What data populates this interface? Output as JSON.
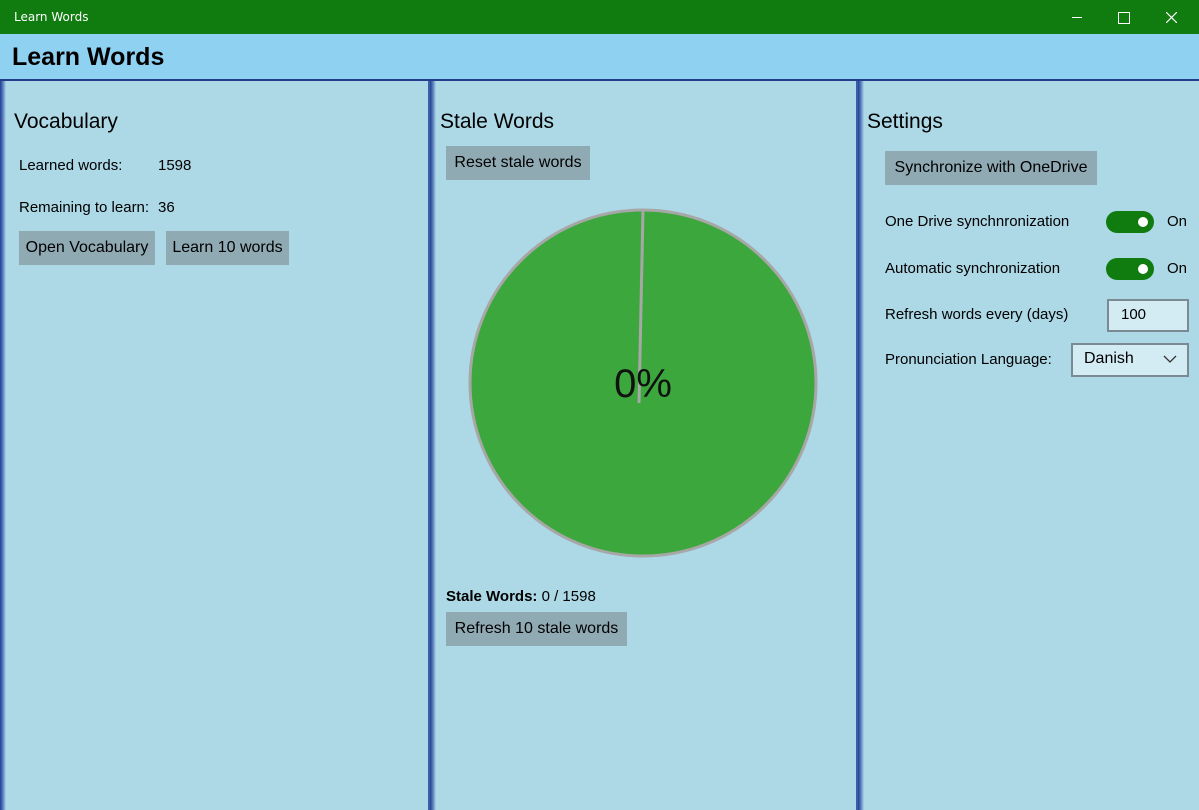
{
  "window": {
    "title": "Learn Words"
  },
  "app": {
    "title": "Learn Words"
  },
  "vocabulary": {
    "title": "Vocabulary",
    "learned_label": "Learned words:",
    "learned_value": "1598",
    "remaining_label": "Remaining to learn:",
    "remaining_value": "36",
    "open_button": "Open Vocabulary",
    "learn_button": "Learn 10 words"
  },
  "stale": {
    "title": "Stale Words",
    "reset_button": "Reset stale words",
    "percent_label": "0%",
    "percent_value": 0,
    "count_label": "Stale Words:",
    "count_value": "0 / 1598",
    "refresh_button": "Refresh 10 stale words",
    "pie_color": "#3ca73c",
    "pie_border_color": "#a7a7a7"
  },
  "settings": {
    "title": "Settings",
    "sync_button": "Synchronize with OneDrive",
    "onedrive_label": "One Drive synchnronization",
    "onedrive_state": "On",
    "auto_label": "Automatic synchronization",
    "auto_state": "On",
    "refresh_label": "Refresh words every (days)",
    "refresh_value": "100",
    "language_label": "Pronunciation Language:",
    "language_value": "Danish"
  },
  "colors": {
    "titlebar": "#107c10",
    "header": "#8fd1f1",
    "panel": "#add8e6",
    "button": "#90aab3",
    "toggle_on": "#107c10"
  }
}
